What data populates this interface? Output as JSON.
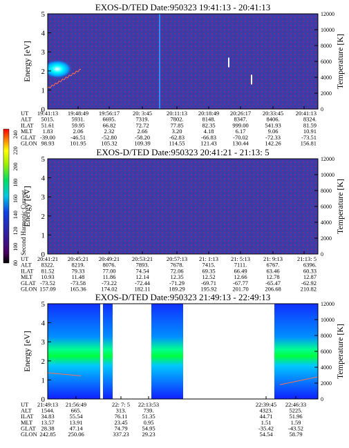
{
  "colorbar": {
    "label": "Second Harmonic Current",
    "ticks": [
      "240",
      "220",
      "200",
      "180",
      "160",
      "140",
      "120",
      "100",
      "80"
    ]
  },
  "chart_data": [
    {
      "type": "heatmap",
      "title": "EXOS-D/TED   Date:950323  19:41:13 - 20:41:13",
      "ylabel": "Energy [eV]",
      "y2label": "Temperature [K]",
      "ylim": [
        0,
        5
      ],
      "y2lim": [
        0,
        12000
      ],
      "yticks": [
        "0",
        "1",
        "2",
        "3",
        "4",
        "5"
      ],
      "y2ticks": [
        "0",
        "2000",
        "4000",
        "6000",
        "8000",
        "10000",
        "12000"
      ],
      "rows": [
        {
          "label": "UT",
          "values": [
            "19:41:13",
            "19:48:49",
            "19:56:17",
            "20: 3:45",
            "20:11:13",
            "20:18:49",
            "20:26:17",
            "20:33:45",
            "20:41:13"
          ]
        },
        {
          "label": "ALT",
          "values": [
            "5015.",
            "5931.",
            "6695.",
            "7319.",
            "7802.",
            "8148.",
            "8347.",
            "8406.",
            "8324."
          ]
        },
        {
          "label": "ILAT",
          "values": [
            "51.61",
            "59.95",
            "66.82",
            "72.72",
            "77.85",
            "82.35",
            "999.00",
            "541.93",
            "81.59"
          ]
        },
        {
          "label": "MLT",
          "values": [
            "1.83",
            "2.06",
            "2.32",
            "2.66",
            "3.20",
            "4.18",
            "6.17",
            "9.06",
            "10.91"
          ]
        },
        {
          "label": "GLAT",
          "values": [
            "-39.00",
            "-46.51",
            "-52.80",
            "-58.20",
            "-62.83",
            "-66.83",
            "-70.02",
            "-72.33",
            "-73.51"
          ]
        },
        {
          "label": "GLON",
          "values": [
            "98.93",
            "101.95",
            "105.32",
            "109.39",
            "114.55",
            "121.43",
            "130.44",
            "142.26",
            "156.81"
          ]
        }
      ]
    },
    {
      "type": "heatmap",
      "title": "EXOS-D/TED   Date:950323  20:41:21 - 21:13: 5",
      "ylabel": "Energy [eV]",
      "y2label": "Temperature [K]",
      "ylim": [
        0,
        5
      ],
      "y2lim": [
        0,
        12000
      ],
      "yticks": [
        "0",
        "1",
        "2",
        "3",
        "4",
        "5"
      ],
      "y2ticks": [
        "0",
        "2000",
        "4000",
        "6000",
        "8000",
        "10000",
        "12000"
      ],
      "rows": [
        {
          "label": "UT",
          "values": [
            "20:41:21",
            "20:45:21",
            "20:49:21",
            "20:53:21",
            "20:57:13",
            "21: 1:13",
            "21: 5:13",
            "21: 9:13",
            "21:13: 5"
          ]
        },
        {
          "label": "ALT",
          "values": [
            "8322.",
            "8219.",
            "8076.",
            "7893.",
            "7678.",
            "7415.",
            "7111.",
            "6767.",
            "6396."
          ]
        },
        {
          "label": "ILAT",
          "values": [
            "81.52",
            "79.33",
            "77.00",
            "74.54",
            "72.06",
            "69.35",
            "66.49",
            "63.46",
            "60.33"
          ]
        },
        {
          "label": "MLT",
          "values": [
            "10.93",
            "11.48",
            "11.86",
            "12.14",
            "12.35",
            "12.52",
            "12.66",
            "12.78",
            "12.87"
          ]
        },
        {
          "label": "GLAT",
          "values": [
            "-73.52",
            "-73.58",
            "-73.22",
            "-72.44",
            "-71.29",
            "-69.71",
            "-67.77",
            "-65.47",
            "-62.92"
          ]
        },
        {
          "label": "GLON",
          "values": [
            "157.09",
            "165.36",
            "174.02",
            "182.11",
            "189.29",
            "195.92",
            "201.70",
            "206.68",
            "210.82"
          ]
        }
      ]
    },
    {
      "type": "heatmap",
      "title": "EXOS-D/TED   Date:950323  21:49:13 - 22:49:13",
      "ylabel": "Energy [eV]",
      "y2label": "Temperature [K]",
      "ylim": [
        0,
        5
      ],
      "y2lim": [
        0,
        12000
      ],
      "yticks": [
        "0",
        "1",
        "2",
        "3",
        "4",
        "5"
      ],
      "y2ticks": [
        "0",
        "2000",
        "4000",
        "6000",
        "8000",
        "10000",
        "12000"
      ],
      "rows": [
        {
          "label": "UT",
          "values": [
            "21:49:13",
            "21:56:49",
            "22: 7: 5",
            "22:13:53",
            "22:39:45",
            "22:46:33"
          ]
        },
        {
          "label": "ALT",
          "values": [
            "1544.",
            "665.",
            "313.",
            "739.",
            "4323.",
            "5225."
          ]
        },
        {
          "label": "ILAT",
          "values": [
            "34.83",
            "55.54",
            "76.11",
            "51.35",
            "44.71",
            "51.96"
          ]
        },
        {
          "label": "MLT",
          "values": [
            "13.57",
            "13.91",
            "23.45",
            "0.95",
            "1.51",
            "1.59"
          ]
        },
        {
          "label": "GLAT",
          "values": [
            "28.38",
            "47.14",
            "74.79",
            "54.95",
            "-35.42",
            "-43.52"
          ]
        },
        {
          "label": "GLON",
          "values": [
            "242.85",
            "250.06",
            "337.23",
            "29.23",
            "54.54",
            "58.79"
          ]
        }
      ]
    }
  ]
}
